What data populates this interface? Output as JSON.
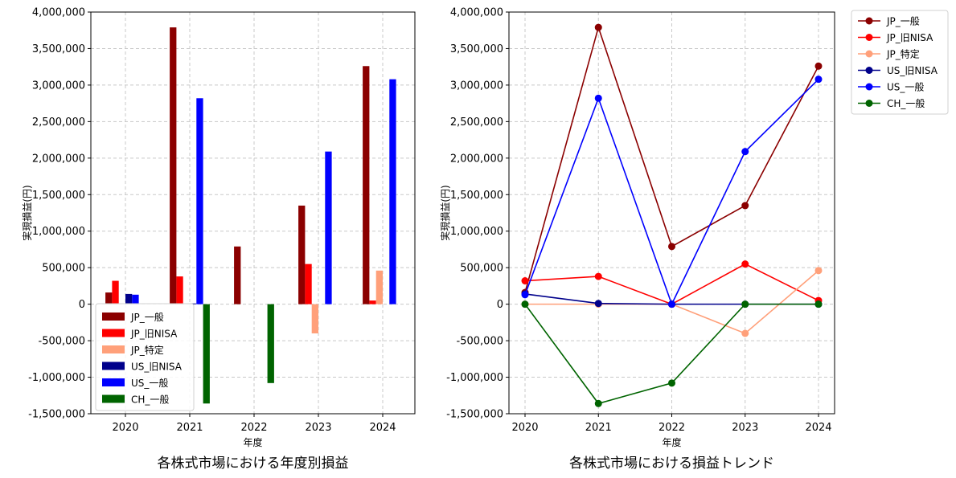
{
  "chart_data": [
    {
      "type": "bar",
      "title": "各株式市場における年度別損益",
      "xlabel": "年度",
      "ylabel": "実現損益(円)",
      "categories": [
        "2020",
        "2021",
        "2022",
        "2023",
        "2024"
      ],
      "ylim": [
        -1500000,
        4000000
      ],
      "yticks": [
        -1500000,
        -1000000,
        -500000,
        0,
        500000,
        1000000,
        1500000,
        2000000,
        2500000,
        3000000,
        3500000,
        4000000
      ],
      "ytick_labels": [
        "-1,500,000",
        "-1,000,000",
        "-500,000",
        "0",
        "500,000",
        "1,000,000",
        "1,500,000",
        "2,000,000",
        "2,500,000",
        "3,000,000",
        "3,500,000",
        "4,000,000"
      ],
      "grid": true,
      "legend_position": "bottom-left",
      "series": [
        {
          "name": "JP_一般",
          "color": "#8b0000",
          "values": [
            160000,
            3790000,
            790000,
            1350000,
            3260000
          ]
        },
        {
          "name": "JP_旧NISA",
          "color": "#ff0000",
          "values": [
            320000,
            380000,
            0,
            550000,
            50000
          ]
        },
        {
          "name": "JP_特定",
          "color": "#ffa07a",
          "values": [
            0,
            0,
            0,
            -400000,
            460000
          ]
        },
        {
          "name": "US_旧NISA",
          "color": "#00008b",
          "values": [
            140000,
            10000,
            0,
            0,
            0
          ]
        },
        {
          "name": "US_一般",
          "color": "#0000ff",
          "values": [
            130000,
            2820000,
            0,
            2090000,
            3080000
          ]
        },
        {
          "name": "CH_一般",
          "color": "#006400",
          "values": [
            0,
            -1360000,
            -1080000,
            0,
            0
          ]
        }
      ]
    },
    {
      "type": "line",
      "title": "各株式市場における損益トレンド",
      "xlabel": "年度",
      "ylabel": "実現損益(円)",
      "x": [
        "2020",
        "2021",
        "2022",
        "2023",
        "2024"
      ],
      "ylim": [
        -1500000,
        4000000
      ],
      "yticks": [
        -1500000,
        -1000000,
        -500000,
        0,
        500000,
        1000000,
        1500000,
        2000000,
        2500000,
        3000000,
        3500000,
        4000000
      ],
      "ytick_labels": [
        "-1,500,000",
        "-1,000,000",
        "-500,000",
        "0",
        "500,000",
        "1,000,000",
        "1,500,000",
        "2,000,000",
        "2,500,000",
        "3,000,000",
        "3,500,000",
        "4,000,000"
      ],
      "grid": true,
      "legend_position": "outside-top-right",
      "series": [
        {
          "name": "JP_一般",
          "color": "#8b0000",
          "values": [
            160000,
            3790000,
            790000,
            1350000,
            3260000
          ]
        },
        {
          "name": "JP_旧NISA",
          "color": "#ff0000",
          "values": [
            320000,
            380000,
            0,
            550000,
            50000
          ]
        },
        {
          "name": "JP_特定",
          "color": "#ffa07a",
          "values": [
            0,
            0,
            0,
            -400000,
            460000
          ]
        },
        {
          "name": "US_旧NISA",
          "color": "#00008b",
          "values": [
            140000,
            10000,
            0,
            0,
            0
          ]
        },
        {
          "name": "US_一般",
          "color": "#0000ff",
          "values": [
            130000,
            2820000,
            0,
            2090000,
            3080000
          ]
        },
        {
          "name": "CH_一般",
          "color": "#006400",
          "values": [
            0,
            -1360000,
            -1080000,
            0,
            0
          ]
        }
      ]
    }
  ]
}
